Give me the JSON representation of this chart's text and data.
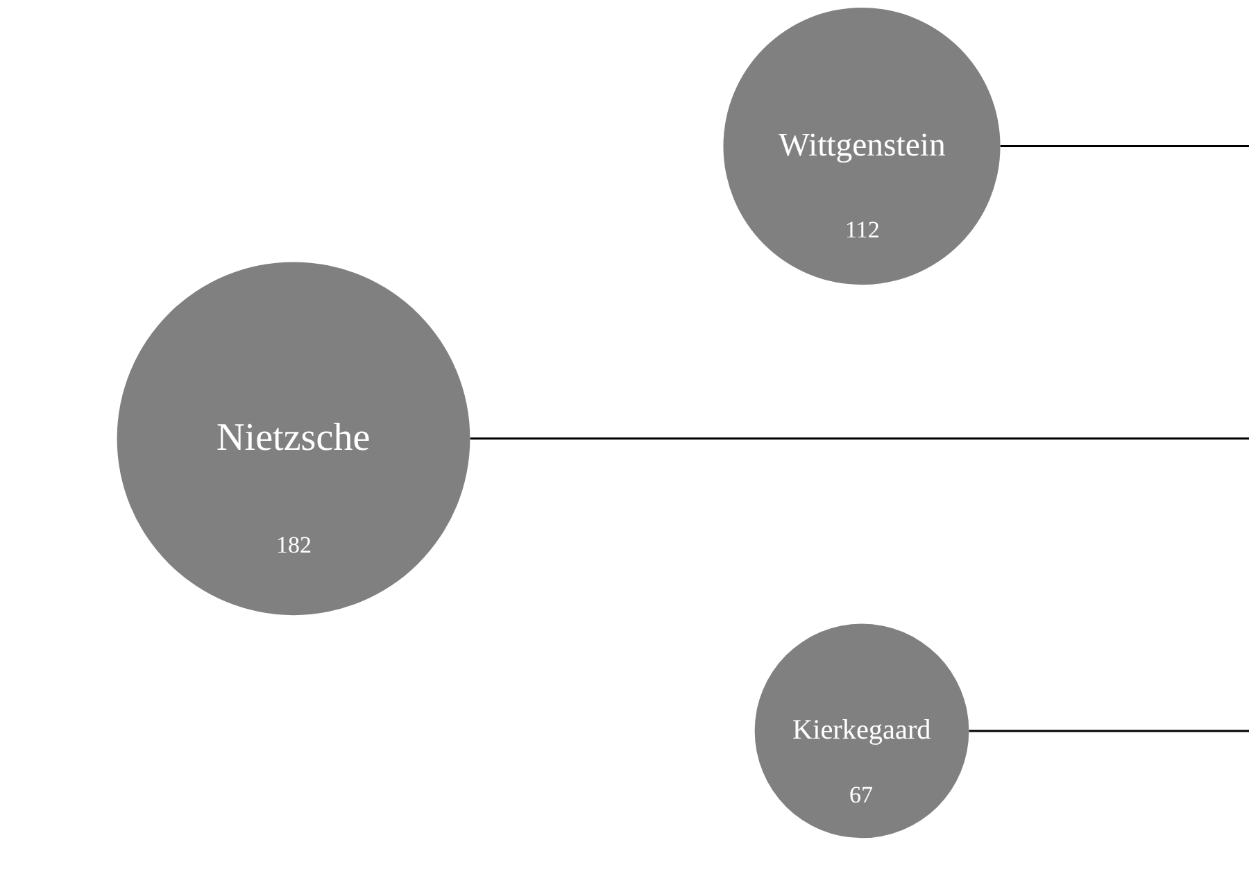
{
  "chart_data": {
    "type": "other",
    "categories": [
      "Wittgenstein",
      "Nietzsche",
      "Kierkegaard"
    ],
    "values": [
      112,
      182,
      67
    ],
    "color": "#808080",
    "data_labels": true
  }
}
